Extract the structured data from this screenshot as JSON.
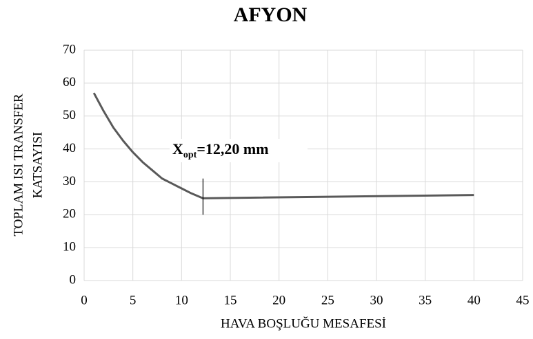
{
  "chart_data": {
    "type": "line",
    "title": "AFYON",
    "x_label": "HAVA BOŞLUĞU MESAFESİ",
    "y_label": [
      "TOPLAM ISI TRANSFER",
      "KATSAYISI"
    ],
    "series": [
      {
        "color": "#595959",
        "x": [
          1,
          2,
          3,
          4,
          5,
          6,
          7,
          8,
          9,
          10,
          11,
          12.2,
          40
        ],
        "values": [
          57,
          51.5,
          46.5,
          42.5,
          39,
          36,
          33.5,
          31,
          29.5,
          28,
          26.5,
          25,
          26
        ]
      }
    ],
    "annotation": {
      "text": "X",
      "subscript": "opt",
      "suffix": "=12,20 mm",
      "x": 12.2,
      "y_range": [
        20,
        31
      ]
    },
    "xlim": [
      0,
      45
    ],
    "xticks": [
      0,
      5,
      10,
      15,
      20,
      25,
      30,
      35,
      40,
      45
    ],
    "ylim": [
      0,
      70
    ],
    "yticks": [
      0,
      10,
      20,
      30,
      40,
      50,
      60,
      70
    ],
    "grid": true
  }
}
